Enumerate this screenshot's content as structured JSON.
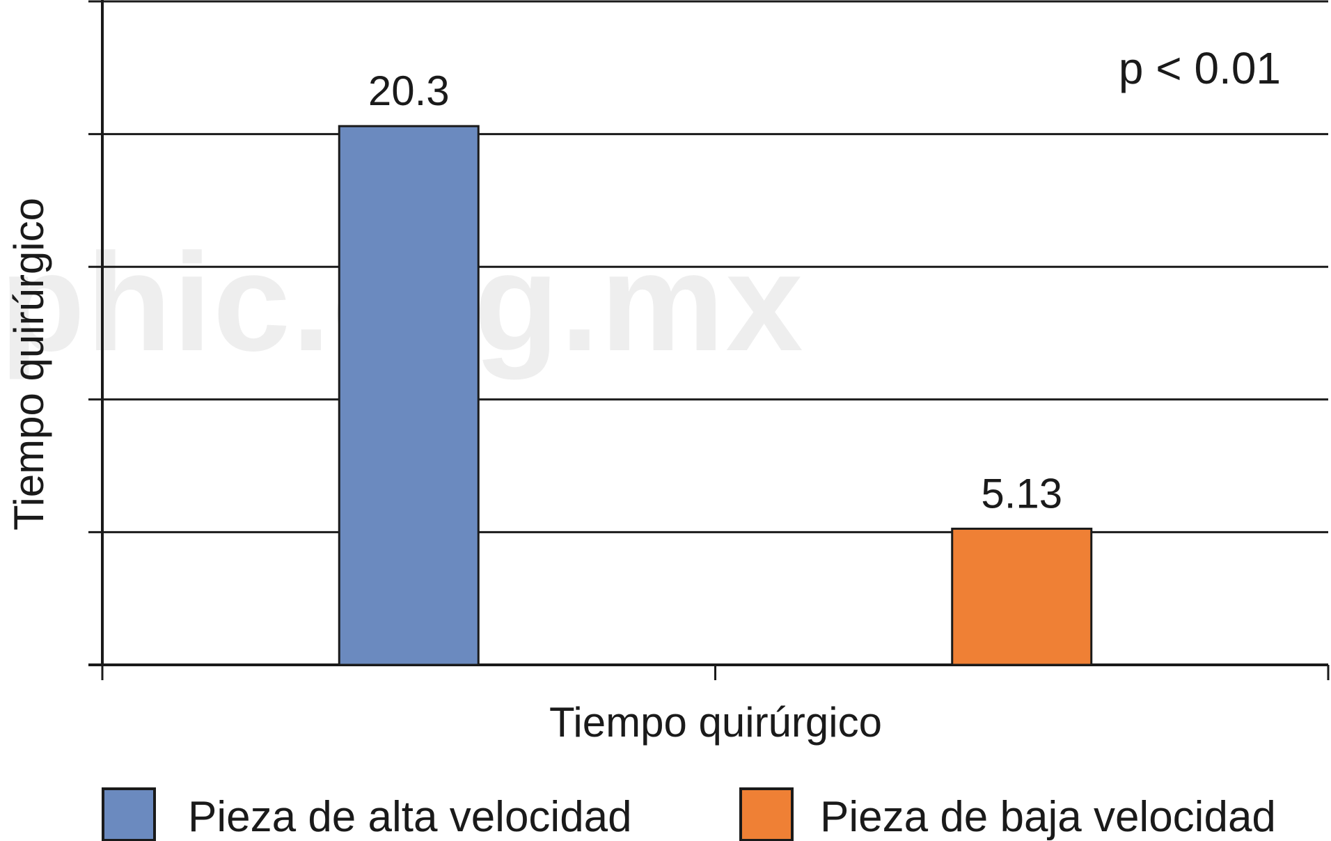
{
  "chart_data": {
    "type": "bar",
    "categories": [
      "Pieza de alta velocidad",
      "Pieza de baja velocidad"
    ],
    "values": [
      20.3,
      5.13
    ],
    "value_labels": [
      "20.3",
      "5.13"
    ],
    "colors": [
      "#6b8abf",
      "#ef8035"
    ],
    "title": "",
    "xlabel": "Tiempo quirúrgico",
    "ylabel": "Tiempo quirúrgico",
    "ylim": [
      0,
      25
    ],
    "y_gridlines": [
      5,
      10,
      15,
      20
    ],
    "grid": true,
    "annotation": "p < 0.01",
    "legend": {
      "placement": "bottom",
      "entries": [
        "Pieza de alta velocidad",
        "Pieza de baja velocidad"
      ]
    }
  },
  "watermark": "phic.org.mx"
}
